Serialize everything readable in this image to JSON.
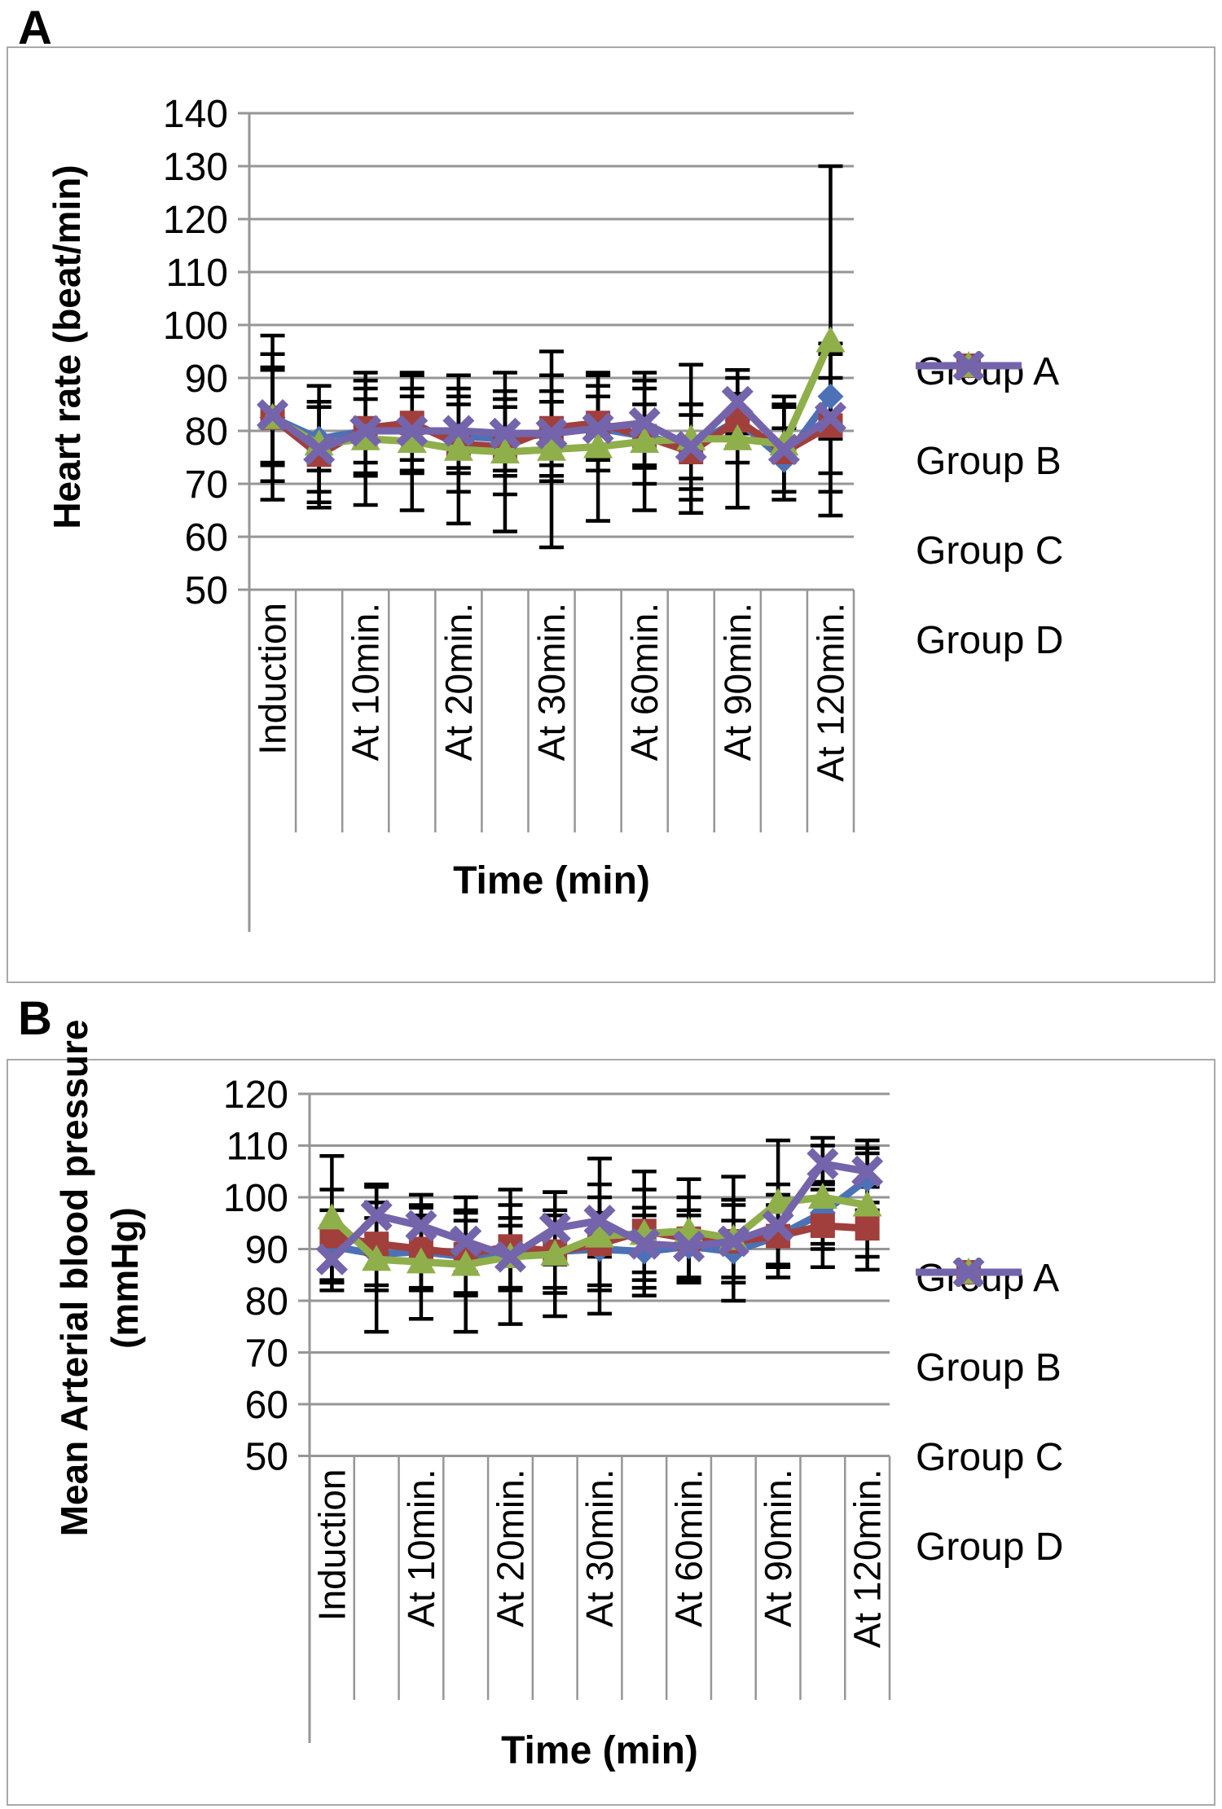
{
  "panels": [
    {
      "label": "A"
    },
    {
      "label": "B"
    }
  ],
  "colors": {
    "group_a": "#4c71b7",
    "group_b": "#a13f3c",
    "group_c": "#8faf4b",
    "group_d": "#7464ab",
    "gridline": "#969696",
    "error_bar": "#000000",
    "box_border": "#a9a9a9"
  },
  "chart_data": [
    {
      "type": "line",
      "panel": "A",
      "ylabel": "Heart rate (beat/min)",
      "xlabel": "Time (min)",
      "ylim": [
        50,
        140
      ],
      "ytick_step": 10,
      "grid": "horizontal",
      "legend_position": "right",
      "n_points": 13,
      "label_every": 2,
      "x_labels_shown": [
        "Induction",
        "At 10min.",
        "At 20min.",
        "At 30min.",
        "At 60min.",
        "At 90min.",
        "At 120min."
      ],
      "series": [
        {
          "name": "Group A",
          "marker": "diamond",
          "values": [
            82.5,
            78.5,
            80,
            80.5,
            79,
            78.5,
            79.5,
            80.5,
            79,
            77,
            82,
            74.5,
            86.5
          ],
          "errors": [
            9,
            6,
            6,
            6,
            6,
            6,
            6,
            6,
            6,
            6,
            5,
            6,
            8
          ]
        },
        {
          "name": "Group B",
          "marker": "square",
          "values": [
            82.5,
            75.5,
            80.5,
            81.5,
            77.5,
            77,
            80.5,
            81.5,
            79,
            76,
            82,
            76,
            81
          ],
          "errors": [
            12,
            10,
            9,
            9,
            9,
            9,
            10,
            9,
            9,
            9,
            8,
            9,
            9
          ]
        },
        {
          "name": "Group C",
          "marker": "triangle",
          "values": [
            82.5,
            77.5,
            78.5,
            78,
            76.5,
            76,
            76.5,
            77,
            78,
            78.5,
            78.5,
            77.5,
            97
          ],
          "errors": [
            15.5,
            11,
            12.5,
            13,
            14,
            15,
            18.5,
            14,
            13,
            14,
            13,
            9,
            33
          ]
        },
        {
          "name": "Group D",
          "marker": "x",
          "values": [
            83,
            76.5,
            80,
            80,
            80,
            79.5,
            79.5,
            80.5,
            81.5,
            77,
            85.5,
            76.5,
            82.5
          ],
          "errors": [
            9,
            8,
            8,
            8,
            8,
            8,
            8,
            8,
            8,
            8,
            6,
            8,
            14
          ]
        }
      ]
    },
    {
      "type": "line",
      "panel": "B",
      "ylabel": "Mean Arterial blood pressure",
      "ylabel2": "(mmHg)",
      "xlabel": "Time (min)",
      "ylim": [
        50,
        120
      ],
      "ytick_step": 10,
      "grid": "horizontal",
      "legend_position": "right",
      "n_points": 13,
      "label_every": 2,
      "x_labels_shown": [
        "Induction",
        "At 10min.",
        "At 20min.",
        "At 30min.",
        "At 60min.",
        "At 90min.",
        "At 120min."
      ],
      "series": [
        {
          "name": "Group A",
          "marker": "diamond",
          "values": [
            90.5,
            89,
            89.5,
            88.5,
            89,
            89.5,
            90,
            89.5,
            90.5,
            89.5,
            92.5,
            97,
            103.5
          ],
          "errors": [
            7,
            7,
            7,
            7,
            7,
            7,
            7,
            7,
            6,
            6,
            6,
            6,
            6
          ]
        },
        {
          "name": "Group B",
          "marker": "square",
          "values": [
            92.5,
            91,
            90,
            89,
            90.5,
            89.5,
            91,
            93.5,
            92,
            91.5,
            92.5,
            94.5,
            94
          ],
          "errors": [
            9,
            8,
            8,
            8,
            8,
            8,
            9,
            8,
            8,
            8,
            8,
            8,
            8
          ]
        },
        {
          "name": "Group C",
          "marker": "triangle",
          "values": [
            96,
            88,
            87.5,
            87,
            88.5,
            89,
            92.5,
            93,
            93.5,
            92,
            99,
            100,
            98.5
          ],
          "errors": [
            12,
            14,
            11,
            13,
            13,
            12,
            15,
            12,
            10,
            12,
            12,
            10,
            10
          ]
        },
        {
          "name": "Group D",
          "marker": "x",
          "values": [
            88,
            96.5,
            94.5,
            91.5,
            88.5,
            94,
            95.5,
            91,
            90.5,
            91.5,
            94.5,
            106.5,
            105
          ],
          "errors": [
            6,
            6,
            6,
            6,
            6,
            7,
            7,
            7,
            7,
            7,
            8,
            5,
            6
          ]
        }
      ]
    }
  ]
}
